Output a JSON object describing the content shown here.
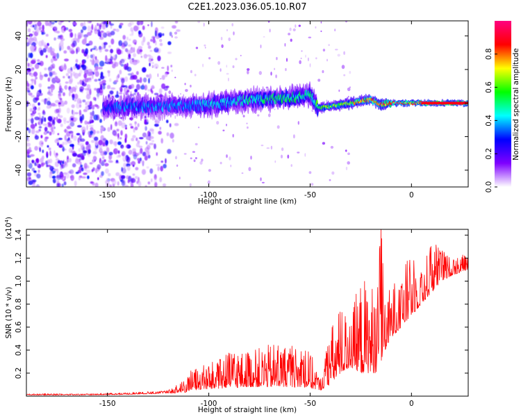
{
  "title": "C2E1.2023.036.05.10.R07",
  "chart_data": [
    {
      "type": "heatmap",
      "xlabel": "Height of straight line (km)",
      "ylabel": "Frequency (Hz)",
      "xlim": [
        -190,
        28
      ],
      "ylim": [
        -50,
        49
      ],
      "xticks": [
        -150,
        -100,
        -50,
        0
      ],
      "yticks": [
        -40,
        -20,
        0,
        20,
        40
      ],
      "colorbar": {
        "label": "Normalized spectral amplitude",
        "range": [
          0,
          1
        ],
        "ticks": [
          "0.0",
          "0.2",
          "0.4",
          "0.6",
          "0.8"
        ],
        "colormap": [
          "#ffffff",
          "#7f00ff",
          "#0000ff",
          "#00ffff",
          "#00ff00",
          "#ffff00",
          "#ff0000",
          "#ff0080"
        ]
      },
      "ridge": {
        "x": [
          -152,
          -140,
          -120,
          -100,
          -80,
          -60,
          -50,
          -46,
          -40,
          -30,
          -20,
          -15,
          -10,
          0,
          10,
          28
        ],
        "frequency": [
          -3,
          -2,
          -2,
          -1,
          2,
          3,
          5,
          -3,
          -2,
          0,
          2,
          -1,
          0,
          0,
          0,
          0
        ],
        "amplitude": [
          0.3,
          0.35,
          0.35,
          0.4,
          0.45,
          0.5,
          0.45,
          0.55,
          0.6,
          0.65,
          0.75,
          0.8,
          0.85,
          0.85,
          0.9,
          0.9
        ]
      }
    },
    {
      "type": "line",
      "xlabel": "Height of straight line (km)",
      "ylabel": "SNR (10 * v/v)",
      "ymultiplier": "(x10",
      "ymultiplier_exp": "4",
      "ymultiplier_close": ")",
      "xlim": [
        -190,
        28
      ],
      "ylim": [
        0,
        1.45
      ],
      "xticks": [
        -150,
        -100,
        -50,
        0
      ],
      "yticks": [
        0.2,
        0.4,
        0.6,
        0.8,
        1.0,
        1.2,
        1.4
      ],
      "color": "#ff0000",
      "envelope": {
        "x": [
          -190,
          -160,
          -140,
          -130,
          -120,
          -112,
          -108,
          -100,
          -90,
          -80,
          -70,
          -60,
          -50,
          -45,
          -40,
          -35,
          -30,
          -25,
          -20,
          -17,
          -15,
          -13,
          -10,
          -5,
          0,
          5,
          10,
          15,
          20,
          28
        ],
        "base": [
          0.01,
          0.01,
          0.015,
          0.02,
          0.025,
          0.03,
          0.05,
          0.06,
          0.07,
          0.08,
          0.08,
          0.08,
          0.07,
          0.05,
          0.1,
          0.2,
          0.25,
          0.2,
          0.2,
          0.2,
          0.3,
          0.4,
          0.5,
          0.6,
          0.7,
          0.8,
          0.9,
          1.0,
          1.05,
          1.1
        ],
        "peak": [
          0.02,
          0.02,
          0.03,
          0.04,
          0.05,
          0.15,
          0.25,
          0.28,
          0.38,
          0.4,
          0.45,
          0.45,
          0.4,
          0.15,
          0.6,
          0.8,
          0.7,
          1.05,
          1.02,
          0.95,
          1.48,
          0.8,
          1.0,
          1.05,
          1.3,
          1.1,
          1.38,
          1.28,
          1.2,
          1.25
        ]
      }
    }
  ]
}
